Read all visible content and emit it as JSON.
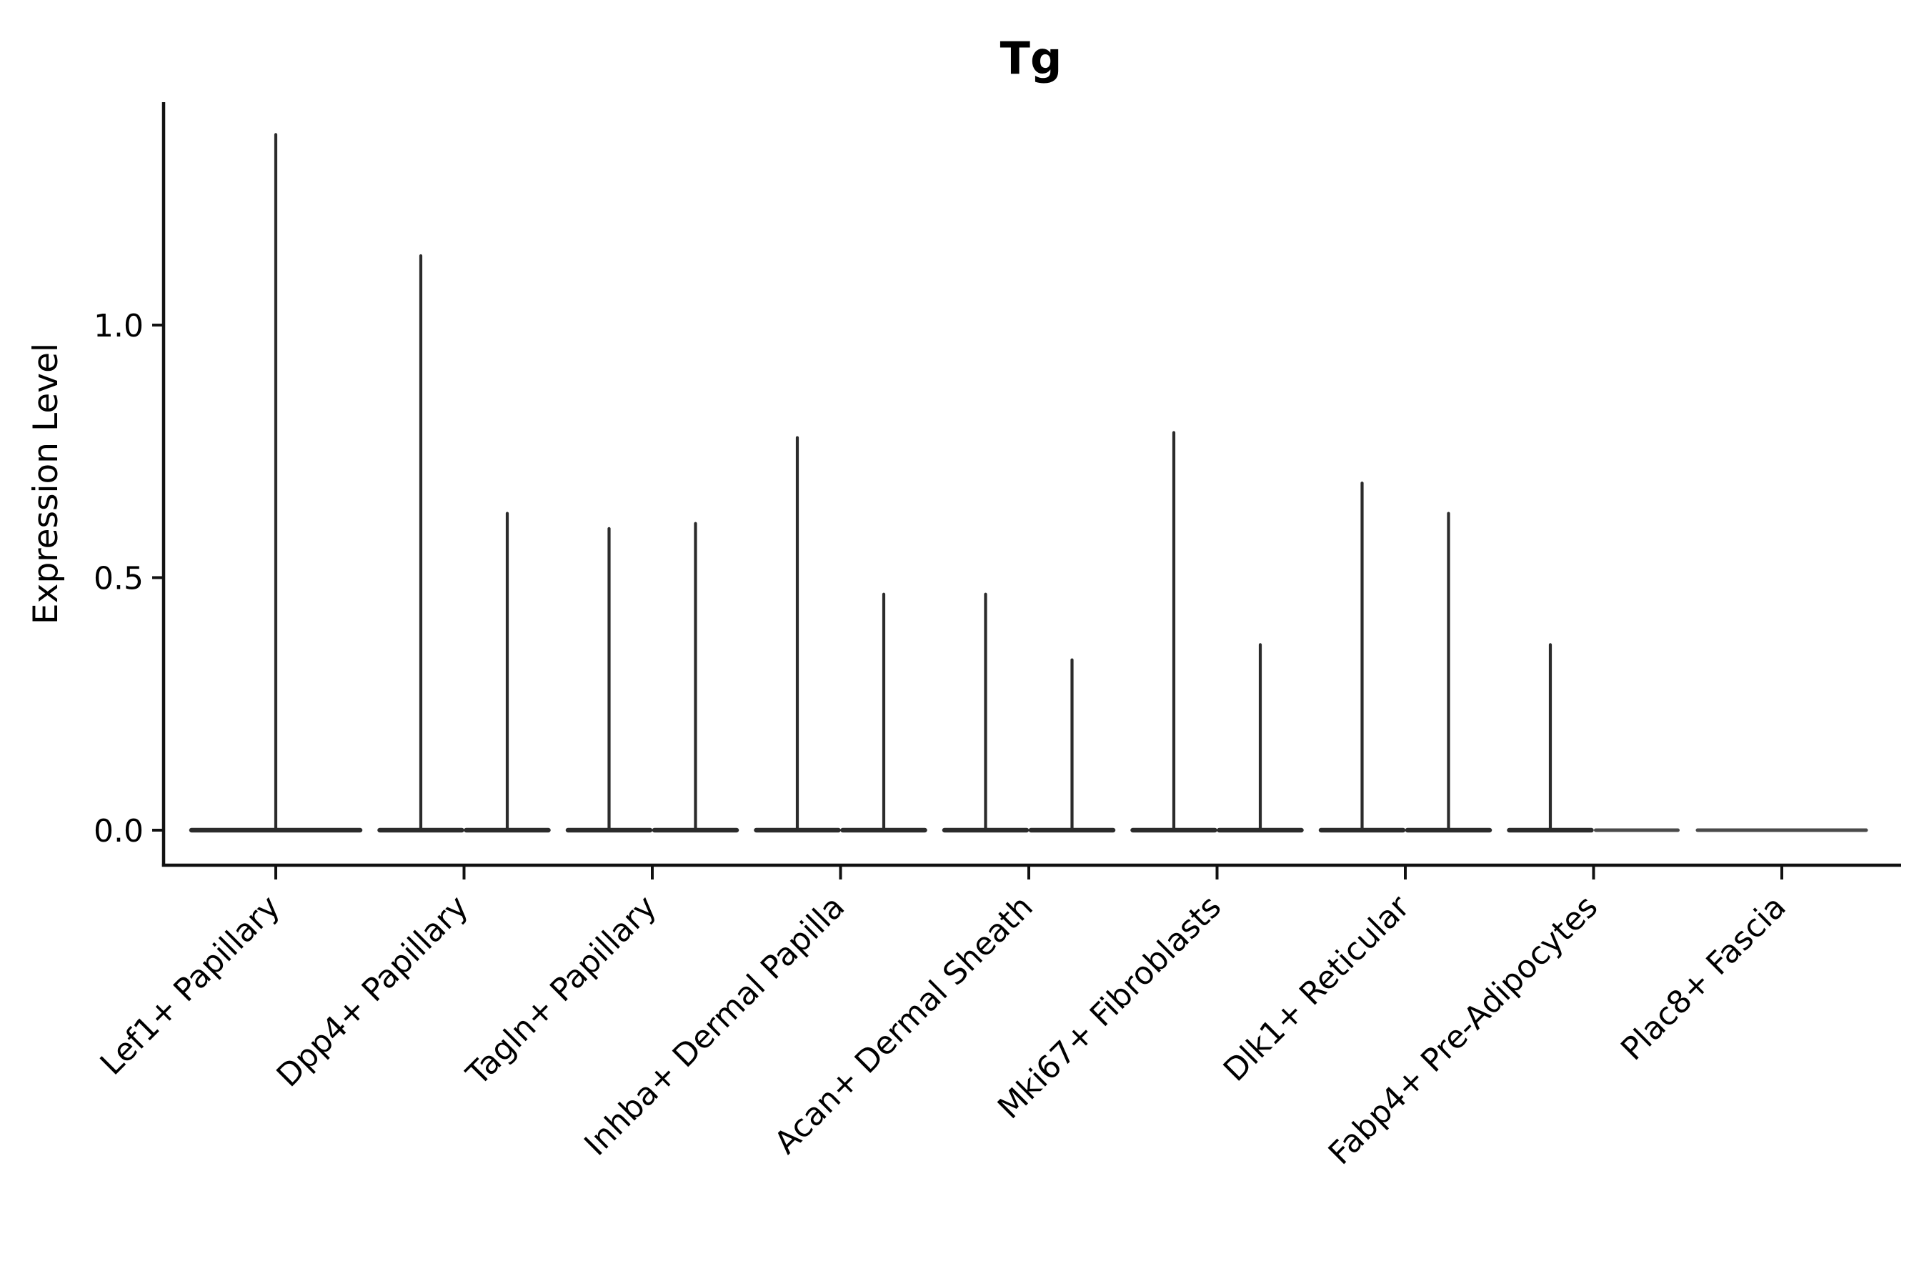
{
  "chart_data": {
    "type": "violin",
    "title": "Tg",
    "ylabel": "Expression Level",
    "xlabel": "",
    "legend": null,
    "grid": false,
    "background": "#ffffff",
    "yticks": [
      {
        "value": 0.0,
        "label": "0.0"
      },
      {
        "value": 0.5,
        "label": "0.5"
      },
      {
        "value": 1.0,
        "label": "1.0"
      }
    ],
    "ylim": [
      -0.07,
      1.44
    ],
    "categories": [
      "Lef1+ Papillary",
      "Dpp4+ Papillary",
      "Tagln+ Papillary",
      "Inhba+ Dermal Papilla",
      "Acan+ Dermal Sheath",
      "Mki67+ Fibroblasts",
      "Dlk1+ Reticular",
      "Fabp4+ Pre-Adipocytes",
      "Plac8+ Fascia"
    ],
    "violins": [
      {
        "category": "Lef1+ Papillary",
        "parts": [
          {
            "side": "center",
            "max": 1.38
          }
        ]
      },
      {
        "category": "Dpp4+ Papillary",
        "parts": [
          {
            "side": "left",
            "max": 1.14
          },
          {
            "side": "right",
            "max": 0.63
          }
        ]
      },
      {
        "category": "Tagln+ Papillary",
        "parts": [
          {
            "side": "left",
            "max": 0.6
          },
          {
            "side": "right",
            "max": 0.61
          }
        ]
      },
      {
        "category": "Inhba+ Dermal Papilla",
        "parts": [
          {
            "side": "left",
            "max": 0.78
          },
          {
            "side": "right",
            "max": 0.47
          }
        ]
      },
      {
        "category": "Acan+ Dermal Sheath",
        "parts": [
          {
            "side": "left",
            "max": 0.47
          },
          {
            "side": "right",
            "max": 0.34
          }
        ]
      },
      {
        "category": "Mki67+ Fibroblasts",
        "parts": [
          {
            "side": "left",
            "max": 0.79
          },
          {
            "side": "right",
            "max": 0.37
          }
        ]
      },
      {
        "category": "Dlk1+ Reticular",
        "parts": [
          {
            "side": "left",
            "max": 0.69
          },
          {
            "side": "right",
            "max": 0.63
          }
        ]
      },
      {
        "category": "Fabp4+ Pre-Adipocytes",
        "parts": [
          {
            "side": "left",
            "max": 0.37
          },
          {
            "side": "right",
            "max": 0.0
          }
        ]
      },
      {
        "category": "Plac8+ Fascia",
        "parts": [
          {
            "side": "center",
            "max": 0.0
          }
        ]
      }
    ],
    "colors": {
      "violin": "#2b2b2b",
      "violin_flat": "#4a4a4a",
      "axis": "#111111",
      "text": "#000000",
      "background": "#ffffff"
    }
  }
}
